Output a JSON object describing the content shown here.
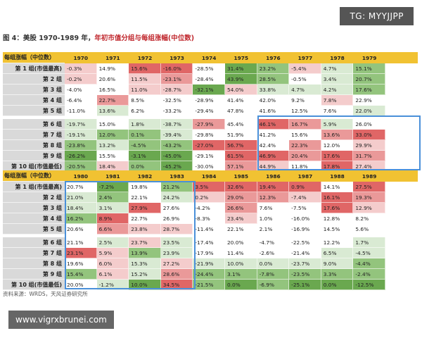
{
  "badge": "TG: MYYJJPP",
  "title": {
    "prefix": "图 4：美股 1970-1989 年，",
    "highlight": "年初市值分组与每组涨幅(中位数)"
  },
  "header_label": "每组涨幅（中位数）",
  "row_labels": [
    "第 1 组(市值最高)",
    "第 2 组",
    "第 3 组",
    "第 4 组",
    "第 5 组",
    "第 6 组",
    "第 7 组",
    "第 8 组",
    "第 9 组",
    "第 10 组(市值最低)"
  ],
  "block1": {
    "years": [
      "1970",
      "1971",
      "1972",
      "1973",
      "1974",
      "1975",
      "1976",
      "1977",
      "1978",
      "1979"
    ],
    "rows": [
      [
        "-0.3%",
        "14.9%",
        "15.6%",
        "-16.0%",
        "-28.5%",
        "31.4%",
        "23.2%",
        "-5.4%",
        "4.7%",
        "15.1%"
      ],
      [
        "-0.2%",
        "20.6%",
        "11.5%",
        "-23.1%",
        "-28.4%",
        "43.9%",
        "28.5%",
        "-0.5%",
        "3.4%",
        "20.7%"
      ],
      [
        "-4.0%",
        "16.5%",
        "11.0%",
        "-28.7%",
        "-32.1%",
        "54.0%",
        "33.8%",
        "4.7%",
        "4.2%",
        "17.6%"
      ],
      [
        "-6.4%",
        "22.7%",
        "8.5%",
        "-32.5%",
        "-28.9%",
        "41.4%",
        "42.0%",
        "9.2%",
        "7.8%",
        "22.9%"
      ],
      [
        "-11.0%",
        "13.6%",
        "6.2%",
        "-33.2%",
        "-29.4%",
        "47.8%",
        "41.6%",
        "12.5%",
        "7.6%",
        "22.0%"
      ],
      [
        "-19.7%",
        "15.0%",
        "1.8%",
        "-38.7%",
        "-27.9%",
        "45.4%",
        "46.1%",
        "16.7%",
        "5.9%",
        "26.0%"
      ],
      [
        "-19.1%",
        "12.0%",
        "0.1%",
        "-39.4%",
        "-29.8%",
        "51.9%",
        "41.2%",
        "15.6%",
        "13.6%",
        "33.0%"
      ],
      [
        "-23.8%",
        "13.2%",
        "-4.5%",
        "-43.2%",
        "-27.0%",
        "56.7%",
        "42.4%",
        "22.3%",
        "12.0%",
        "29.9%"
      ],
      [
        "-26.2%",
        "15.5%",
        "-3.1%",
        "-45.0%",
        "-29.1%",
        "61.5%",
        "46.9%",
        "20.4%",
        "17.6%",
        "31.7%"
      ],
      [
        "-20.5%",
        "18.4%",
        "0.0%",
        "-45.2%",
        "-30.0%",
        "57.1%",
        "44.9%",
        "11.8%",
        "17.8%",
        "27.4%"
      ]
    ],
    "colors": [
      [
        "#f4cccc",
        "#ffffff",
        "#e06666",
        "#e06666",
        "#ffffff",
        "#6aa84f",
        "#93c47d",
        "#f4cccc",
        "#d9ead3",
        "#93c47d"
      ],
      [
        "#f4cccc",
        "#ffffff",
        "#f4cccc",
        "#ea9999",
        "#ffffff",
        "#6aa84f",
        "#93c47d",
        "#ffffff",
        "#d9ead3",
        "#93c47d"
      ],
      [
        "#ffffff",
        "#ffffff",
        "#f4cccc",
        "#f4cccc",
        "#6aa84f",
        "#f4cccc",
        "#d9ead3",
        "#d9ead3",
        "#d9ead3",
        "#93c47d"
      ],
      [
        "#ffffff",
        "#ea9999",
        "#ffffff",
        "#ffffff",
        "#ffffff",
        "#ffffff",
        "#ffffff",
        "#ffffff",
        "#f4cccc",
        "#ffffff"
      ],
      [
        "#ffffff",
        "#d9ead3",
        "#ffffff",
        "#ffffff",
        "#ffffff",
        "#ffffff",
        "#ffffff",
        "#ffffff",
        "#ffffff",
        "#d9ead3"
      ],
      [
        "#d9ead3",
        "#ffffff",
        "#d9ead3",
        "#d9ead3",
        "#ea9999",
        "#ffffff",
        "#e06666",
        "#ea9999",
        "#d9ead3",
        "#ffffff"
      ],
      [
        "#d9ead3",
        "#93c47d",
        "#93c47d",
        "#d9ead3",
        "#ffffff",
        "#ffffff",
        "#ffffff",
        "#ffffff",
        "#ea9999",
        "#e06666"
      ],
      [
        "#93c47d",
        "#d9ead3",
        "#93c47d",
        "#93c47d",
        "#e06666",
        "#e06666",
        "#ffffff",
        "#ea9999",
        "#ffffff",
        "#f4cccc"
      ],
      [
        "#6aa84f",
        "#ffffff",
        "#6aa84f",
        "#6aa84f",
        "#ffffff",
        "#e06666",
        "#e06666",
        "#ea9999",
        "#e06666",
        "#ea9999"
      ],
      [
        "#93c47d",
        "#f4cccc",
        "#93c47d",
        "#6aa84f",
        "#ffffff",
        "#ea9999",
        "#f4cccc",
        "#ffffff",
        "#e06666",
        "#f4cccc"
      ]
    ]
  },
  "block2": {
    "years": [
      "1980",
      "1981",
      "1982",
      "1983",
      "1984",
      "1985",
      "1986",
      "1987",
      "1988",
      "1989"
    ],
    "rows": [
      [
        "20.7%",
        "-7.2%",
        "19.8%",
        "21.2%",
        "3.5%",
        "32.6%",
        "19.4%",
        "0.9%",
        "14.1%",
        "27.5%"
      ],
      [
        "21.0%",
        "2.4%",
        "22.1%",
        "24.2%",
        "0.2%",
        "29.0%",
        "12.3%",
        "-7.4%",
        "16.1%",
        "19.3%"
      ],
      [
        "18.4%",
        "3.1%",
        "27.9%",
        "27.6%",
        "-4.2%",
        "26.6%",
        "7.6%",
        "-7.5%",
        "17.6%",
        "12.9%"
      ],
      [
        "16.2%",
        "8.9%",
        "22.7%",
        "26.9%",
        "-8.3%",
        "23.4%",
        "1.0%",
        "-16.0%",
        "12.8%",
        "8.2%"
      ],
      [
        "20.6%",
        "6.6%",
        "23.8%",
        "28.7%",
        "-11.4%",
        "22.1%",
        "2.1%",
        "-16.9%",
        "14.5%",
        "5.6%"
      ],
      [
        "21.1%",
        "2.5%",
        "23.7%",
        "23.5%",
        "-17.4%",
        "20.0%",
        "-4.7%",
        "-22.5%",
        "12.2%",
        "1.7%"
      ],
      [
        "23.1%",
        "5.9%",
        "13.9%",
        "23.9%",
        "-17.9%",
        "11.4%",
        "-2.6%",
        "-21.4%",
        "6.5%",
        "-4.5%"
      ],
      [
        "19.6%",
        "6.0%",
        "15.3%",
        "27.2%",
        "-21.9%",
        "10.0%",
        "0.0%",
        "-23.7%",
        "9.0%",
        "-4.4%"
      ],
      [
        "15.4%",
        "6.1%",
        "15.2%",
        "28.6%",
        "-24.4%",
        "3.1%",
        "-7.8%",
        "-23.5%",
        "3.3%",
        "-2.4%"
      ],
      [
        "20.0%",
        "-1.2%",
        "10.0%",
        "34.5%",
        "-21.5%",
        "0.0%",
        "-6.9%",
        "-25.1%",
        "0.0%",
        "-12.5%"
      ]
    ],
    "colors": [
      [
        "#ffffff",
        "#6aa84f",
        "#ffffff",
        "#93c47d",
        "#e06666",
        "#e06666",
        "#e06666",
        "#e06666",
        "#ffffff",
        "#e06666"
      ],
      [
        "#d9ead3",
        "#93c47d",
        "#ffffff",
        "#d9ead3",
        "#f4cccc",
        "#ea9999",
        "#ea9999",
        "#f4cccc",
        "#e06666",
        "#ea9999"
      ],
      [
        "#d9ead3",
        "#d9ead3",
        "#e06666",
        "#ffffff",
        "#ffffff",
        "#ea9999",
        "#ffffff",
        "#ffffff",
        "#e06666",
        "#f4cccc"
      ],
      [
        "#93c47d",
        "#e06666",
        "#ffffff",
        "#ffffff",
        "#ffffff",
        "#f4cccc",
        "#ffffff",
        "#ffffff",
        "#ffffff",
        "#ffffff"
      ],
      [
        "#ffffff",
        "#ea9999",
        "#f4cccc",
        "#f4cccc",
        "#ffffff",
        "#ffffff",
        "#ffffff",
        "#ffffff",
        "#ffffff",
        "#ffffff"
      ],
      [
        "#ffffff",
        "#d9ead3",
        "#f4cccc",
        "#d9ead3",
        "#ffffff",
        "#ffffff",
        "#ffffff",
        "#ffffff",
        "#ffffff",
        "#d9ead3"
      ],
      [
        "#e06666",
        "#f4cccc",
        "#93c47d",
        "#d9ead3",
        "#ffffff",
        "#ffffff",
        "#ffffff",
        "#ffffff",
        "#d9ead3",
        "#d9ead3"
      ],
      [
        "#ffffff",
        "#f4cccc",
        "#d9ead3",
        "#f4cccc",
        "#d9ead3",
        "#d9ead3",
        "#d9ead3",
        "#d9ead3",
        "#d9ead3",
        "#93c47d"
      ],
      [
        "#93c47d",
        "#f4cccc",
        "#d9ead3",
        "#ea9999",
        "#93c47d",
        "#93c47d",
        "#93c47d",
        "#93c47d",
        "#93c47d",
        "#93c47d"
      ],
      [
        "#ffffff",
        "#d9ead3",
        "#6aa84f",
        "#e06666",
        "#93c47d",
        "#6aa84f",
        "#93c47d",
        "#6aa84f",
        "#6aa84f",
        "#6aa84f"
      ]
    ]
  },
  "source": "资料来源：WRDS，天风证券研究所",
  "watermark": "www.vigrxbrunei.com",
  "colors": {
    "header_bg": "#f1c232",
    "label_bg": "#d9d9d9",
    "title_highlight": "#c0272d",
    "box_border": "#4a90d9"
  }
}
